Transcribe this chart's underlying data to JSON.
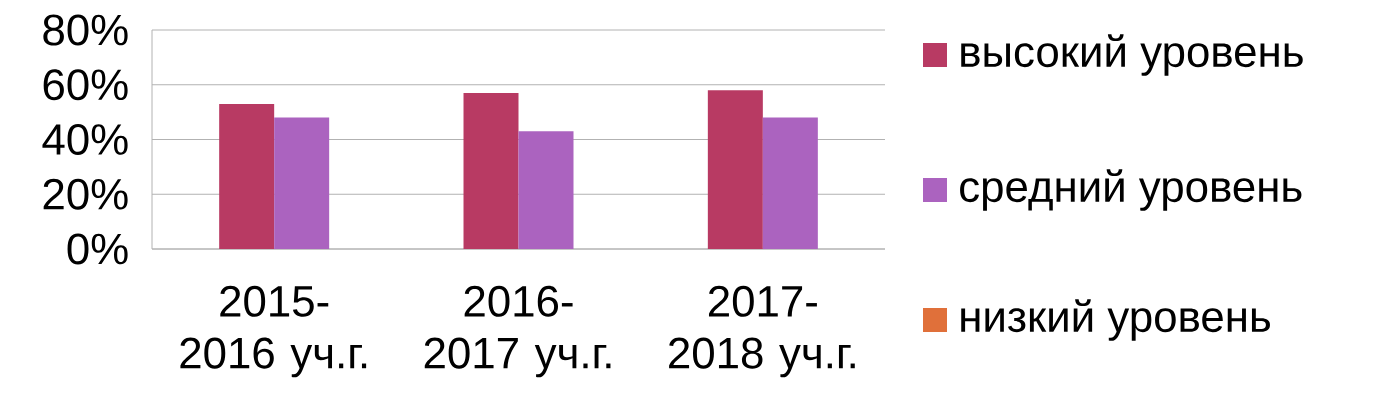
{
  "chart_data": {
    "type": "bar",
    "categories": [
      "2015-2016 уч.г.",
      "2016-2017 уч.г.",
      "2017-2018 уч.г."
    ],
    "series": [
      {
        "name": "высокий уровень",
        "color": "#b83a63",
        "values": [
          53,
          57,
          58
        ]
      },
      {
        "name": "средний уровень",
        "color": "#ab63bf",
        "values": [
          48,
          43,
          48
        ]
      },
      {
        "name": "низкий уровень",
        "color": "#e0703a",
        "values": [
          0,
          0,
          0
        ]
      }
    ],
    "ylim": [
      0,
      80
    ],
    "yticks": [
      {
        "value": 0,
        "label": "0%"
      },
      {
        "value": 20,
        "label": "20%"
      },
      {
        "value": 40,
        "label": "40%"
      },
      {
        "value": 60,
        "label": "60%"
      },
      {
        "value": 80,
        "label": "80%"
      }
    ],
    "grid": "y",
    "legend": "right"
  }
}
